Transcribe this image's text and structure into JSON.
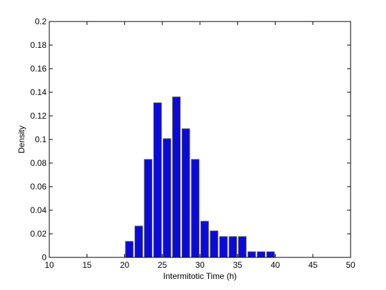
{
  "chart_data": {
    "type": "histogram",
    "xlabel": "Intermitotic Time (h)",
    "ylabel": "Density",
    "bins": [
      20,
      21.25,
      22.5,
      23.75,
      25,
      26.25,
      27.5,
      28.75,
      30,
      31.25,
      32.5,
      33.75,
      35,
      36.25,
      37.5,
      38.75,
      40
    ],
    "values": [
      0.0135,
      0.0265,
      0.083,
      0.131,
      0.1006,
      0.136,
      0.109,
      0.083,
      0.0306,
      0.0224,
      0.0176,
      0.0176,
      0.0176,
      0.0047,
      0.0047,
      0.0047
    ],
    "color": "#0a0adf",
    "xlim": [
      10,
      50
    ],
    "xticks": [
      10,
      15,
      20,
      25,
      30,
      35,
      40,
      45,
      50
    ],
    "ylim": [
      0,
      0.2
    ],
    "yticks": [
      0,
      0.02,
      0.04,
      0.06,
      0.08,
      0.1,
      0.12,
      0.14,
      0.16,
      0.18,
      0.2
    ]
  }
}
